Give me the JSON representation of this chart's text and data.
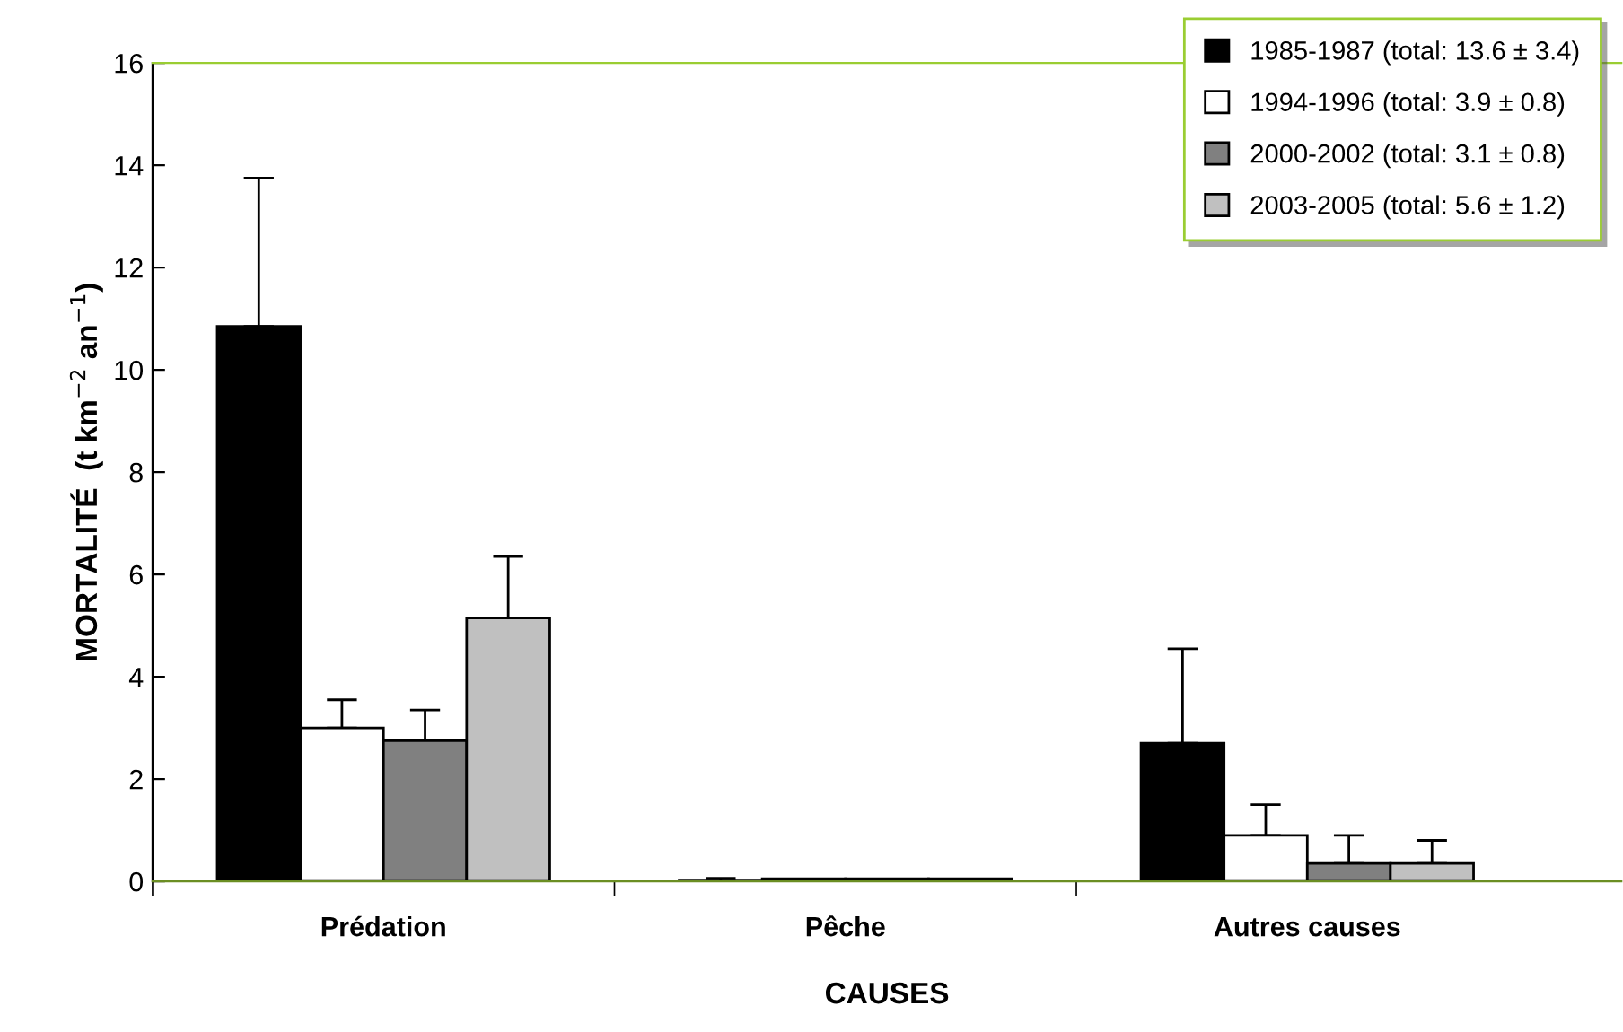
{
  "chart_data": {
    "type": "bar",
    "xlabel": "CAUSES",
    "ylabel": "MORTALITÉ  (t km$^{−2}$ an$^{−1}$)",
    "categories": [
      "Prédation",
      "Pêche",
      "Autres causes"
    ],
    "series": [
      {
        "name": "1985-1987 (total: 13.6 ± 3.4)",
        "color": "#000000",
        "values": [
          10.85,
          0.01,
          2.7
        ],
        "errors": [
          [
            10.85,
            13.75
          ],
          [
            0.01,
            0.06
          ],
          [
            2.7,
            4.55
          ]
        ]
      },
      {
        "name": "1994-1996 (total: 3.9 ± 0.8)",
        "color": "#ffffff",
        "values": [
          3.0,
          0.05,
          0.9
        ],
        "errors": [
          [
            3.0,
            3.55
          ],
          null,
          [
            0.9,
            1.5
          ]
        ]
      },
      {
        "name": "2000-2002 (total: 3.1 ± 0.8)",
        "color": "#808080",
        "values": [
          2.75,
          0.05,
          0.35
        ],
        "errors": [
          [
            2.75,
            3.35
          ],
          null,
          [
            0.35,
            0.9
          ]
        ]
      },
      {
        "name": "2003-2005 (total: 5.6 ± 1.2)",
        "color": "#c0c0c0",
        "values": [
          5.15,
          0.05,
          0.35
        ],
        "errors": [
          [
            5.15,
            6.35
          ],
          null,
          [
            0.35,
            0.8
          ]
        ]
      }
    ],
    "ylim": [
      0,
      16
    ],
    "yticks": [
      0,
      2,
      4,
      6,
      8,
      10,
      12,
      14,
      16
    ],
    "grid": false,
    "legend": "top right"
  }
}
